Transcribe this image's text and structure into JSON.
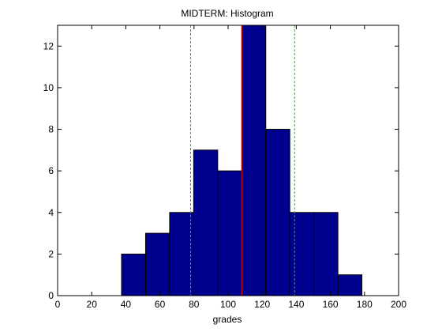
{
  "chart_data": {
    "type": "bar",
    "title": "MIDTERM: Histogram",
    "xlabel": "grades",
    "ylabel": "",
    "xlim": [
      0,
      200
    ],
    "ylim": [
      0,
      13
    ],
    "xticks": [
      0,
      20,
      40,
      60,
      80,
      100,
      120,
      140,
      160,
      180,
      200
    ],
    "yticks": [
      0,
      2,
      4,
      6,
      8,
      10,
      12
    ],
    "grid": false,
    "bins": [
      {
        "left": 37.5,
        "right": 51.6,
        "value": 2
      },
      {
        "left": 51.6,
        "right": 65.7,
        "value": 3
      },
      {
        "left": 65.7,
        "right": 79.8,
        "value": 4
      },
      {
        "left": 79.8,
        "right": 93.9,
        "value": 7
      },
      {
        "left": 93.9,
        "right": 108.0,
        "value": 6
      },
      {
        "left": 108.0,
        "right": 122.1,
        "value": 13
      },
      {
        "left": 122.1,
        "right": 136.2,
        "value": 8
      },
      {
        "left": 136.2,
        "right": 150.3,
        "value": 4
      },
      {
        "left": 150.3,
        "right": 164.4,
        "value": 4
      },
      {
        "left": 164.4,
        "right": 178.5,
        "value": 1
      }
    ],
    "reference_lines": [
      {
        "kind": "mean",
        "x": 108.0,
        "style": "solid",
        "color": "#ff0000"
      },
      {
        "kind": "mean-minus-std",
        "x": 78.0,
        "style": "dashed",
        "color": "#00cc00"
      },
      {
        "kind": "mean-plus-std",
        "x": 139.0,
        "style": "dashed",
        "color": "#00cc00"
      }
    ],
    "colors": {
      "bar_fill": "#00008f",
      "bar_edge": "#000000",
      "axes": "#000000",
      "background": "#ffffff"
    }
  }
}
